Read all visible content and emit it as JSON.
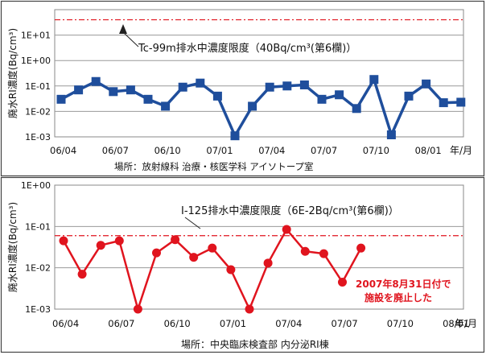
{
  "chart_data": [
    {
      "type": "line",
      "ylabel": "廃水RI濃度(Bq/cm³)",
      "y_scale": "log",
      "ylim": [
        0.001,
        100
      ],
      "y_ticks": [
        "1E+01",
        "1E+00",
        "1E-01",
        "1E-02",
        "1E-03"
      ],
      "x_ticks": [
        "06/04",
        "06/07",
        "06/10",
        "07/01",
        "07/04",
        "07/07",
        "07/10",
        "08/01"
      ],
      "x_unit": "年/月",
      "limit": {
        "value": 40,
        "label": "Tc-99m排水中濃度限度（40Bq/cm³(第6欄)）"
      },
      "location": "場所：放射線科 治療・核医学科 アイソトープ室",
      "series": [
        {
          "name": "Tc-99m",
          "color": "#1f4e9c",
          "marker": "square",
          "values": [
            0.03,
            0.07,
            0.15,
            0.06,
            0.07,
            0.03,
            0.016,
            0.09,
            0.13,
            0.04,
            0.0011,
            0.016,
            0.09,
            0.1,
            0.11,
            0.03,
            0.045,
            0.013,
            0.18,
            0.0012,
            0.04,
            0.12,
            0.022,
            0.023
          ]
        }
      ]
    },
    {
      "type": "line",
      "ylabel": "廃水RI濃度(Bq/cm³)",
      "y_scale": "log",
      "ylim": [
        0.001,
        1
      ],
      "y_ticks": [
        "1E+00",
        "1E-01",
        "1E-02",
        "1E-03"
      ],
      "x_ticks": [
        "06/04",
        "06/07",
        "06/10",
        "07/01",
        "07/04",
        "07/07",
        "07/10",
        "08/01"
      ],
      "x_unit": "年/月",
      "limit": {
        "value": 0.06,
        "label": "I-125排水中濃度限度（6E-2Bq/cm³(第6欄)）"
      },
      "annotation": [
        "2007年8月31日付で",
        "施設を廃止した"
      ],
      "location": "場所：中央臨床検査部 内分泌RI棟",
      "series": [
        {
          "name": "I-125",
          "color": "#e0141e",
          "marker": "circle",
          "values": [
            0.045,
            0.007,
            0.035,
            0.045,
            0.001,
            0.023,
            0.048,
            0.018,
            0.03,
            0.009,
            0.001,
            0.013,
            0.085,
            0.025,
            0.022,
            0.0045,
            0.03
          ]
        }
      ]
    }
  ]
}
